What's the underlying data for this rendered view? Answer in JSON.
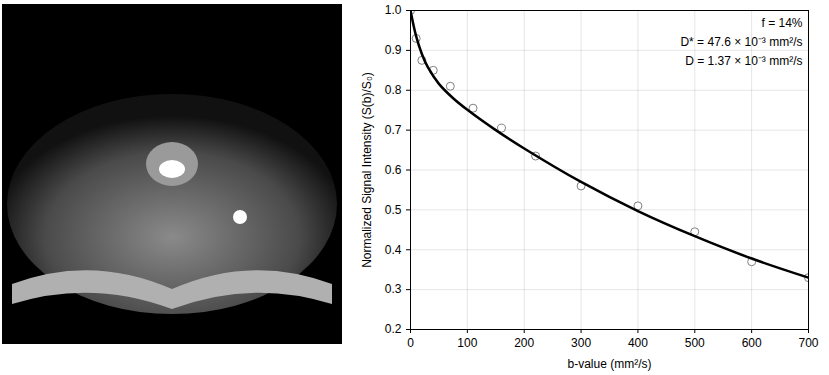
{
  "chart_data": {
    "type": "scatter",
    "xlabel": "b-value (mm²/s)",
    "ylabel": "Normalized Signal Intensity (S(b)/S₀)",
    "xlim": [
      0,
      700
    ],
    "xticks": [
      0,
      100,
      200,
      300,
      400,
      500,
      600,
      700
    ],
    "ylim": [
      0.2,
      1
    ],
    "yticks": [
      0.2,
      0.3,
      0.4,
      0.5,
      0.6,
      0.7,
      0.8,
      0.9,
      1
    ],
    "grid": true,
    "annotations": [
      "f = 14%",
      "D* = 47.6 × 10⁻³ mm²/s",
      "D = 1.37 × 10⁻³ mm²/s"
    ],
    "series": [
      {
        "type": "scatter",
        "marker": "circle",
        "color": "#808080",
        "x": [
          0,
          10,
          20,
          40,
          70,
          110,
          160,
          220,
          300,
          400,
          500,
          600,
          700
        ],
        "values": [
          1.0,
          0.93,
          0.875,
          0.85,
          0.81,
          0.755,
          0.705,
          0.635,
          0.56,
          0.51,
          0.445,
          0.37,
          0.33
        ]
      },
      {
        "type": "line",
        "line_style": "solid",
        "color": "#000000",
        "x": [
          0,
          10,
          20,
          30,
          50,
          75,
          100,
          150,
          200,
          300,
          400,
          500,
          600,
          700
        ],
        "values": [
          1.0,
          0.935,
          0.891,
          0.859,
          0.816,
          0.78,
          0.751,
          0.7,
          0.654,
          0.57,
          0.497,
          0.434,
          0.378,
          0.33
        ]
      }
    ]
  }
}
